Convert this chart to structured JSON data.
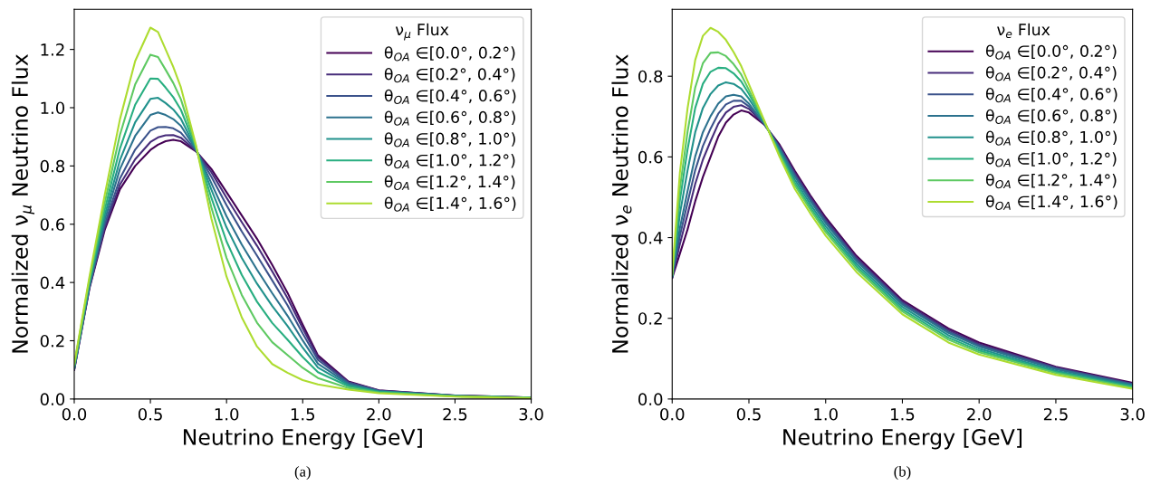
{
  "chart_data": [
    {
      "type": "line",
      "xlabel": "Neutrino Energy [GeV]",
      "ylabel": "Normalized ν$_{μ}$ Neutrino Flux",
      "legend_title": "ν$_{μ}$ Flux",
      "legend": "top right",
      "grid": false,
      "annotations": [
        "(a)"
      ],
      "x": [
        0,
        0.1,
        0.2,
        0.3,
        0.4,
        0.5,
        0.55,
        0.6,
        0.65,
        0.7,
        0.8,
        0.9,
        1.0,
        1.1,
        1.2,
        1.3,
        1.4,
        1.5,
        1.6,
        1.8,
        2.0,
        2.5,
        3.0
      ],
      "xlim": [
        0,
        3.0
      ],
      "ylim": [
        0,
        1.338
      ],
      "xticks": [
        {
          "value": 0,
          "label": "0.0"
        },
        {
          "value": 0.5,
          "label": "0.5"
        },
        {
          "value": 1,
          "label": "1.0"
        },
        {
          "value": 1.5,
          "label": "1.5"
        },
        {
          "value": 2,
          "label": "2.0"
        },
        {
          "value": 2.5,
          "label": "2.5"
        },
        {
          "value": 3,
          "label": "3.0"
        }
      ],
      "yticks": [
        {
          "value": 0,
          "label": "0.0"
        },
        {
          "value": 0.2,
          "label": "0.2"
        },
        {
          "value": 0.4,
          "label": "0.4"
        },
        {
          "value": 0.6,
          "label": "0.6"
        },
        {
          "value": 0.8,
          "label": "0.8"
        },
        {
          "value": 1,
          "label": "1.0"
        },
        {
          "value": 1.2,
          "label": "1.2"
        }
      ],
      "series": [
        {
          "name": "θ$_{OA}$ ∈[0.0°, 0.2°)",
          "color": "#440154",
          "values": [
            0.1,
            0.38,
            0.58,
            0.72,
            0.8,
            0.855,
            0.873,
            0.885,
            0.89,
            0.885,
            0.85,
            0.79,
            0.71,
            0.63,
            0.55,
            0.46,
            0.365,
            0.255,
            0.15,
            0.06,
            0.03,
            0.012,
            0.005
          ]
        },
        {
          "name": "θ$_{OA}$ ∈[0.2°, 0.4°)",
          "color": "#472c7a",
          "values": [
            0.101,
            0.383,
            0.588,
            0.736,
            0.823,
            0.882,
            0.898,
            0.905,
            0.906,
            0.897,
            0.851,
            0.779,
            0.691,
            0.607,
            0.526,
            0.438,
            0.347,
            0.243,
            0.143,
            0.058,
            0.029,
            0.012,
            0.005
          ]
        },
        {
          "name": "θ$_{OA}$ ∈[0.4°, 0.6°)",
          "color": "#3b528b",
          "values": [
            0.103,
            0.386,
            0.599,
            0.757,
            0.856,
            0.921,
            0.933,
            0.934,
            0.929,
            0.914,
            0.853,
            0.763,
            0.665,
            0.575,
            0.492,
            0.407,
            0.322,
            0.225,
            0.134,
            0.056,
            0.028,
            0.011,
            0.005
          ]
        },
        {
          "name": "θ$_{OA}$ ∈[0.6°, 0.8°)",
          "color": "#2c728e",
          "values": [
            0.106,
            0.391,
            0.614,
            0.789,
            0.903,
            0.975,
            0.984,
            0.975,
            0.961,
            0.938,
            0.856,
            0.741,
            0.627,
            0.53,
            0.444,
            0.363,
            0.286,
            0.201,
            0.121,
            0.052,
            0.027,
            0.011,
            0.004
          ]
        },
        {
          "name": "θ$_{OA}$ ∈[0.8°, 1.0°)",
          "color": "#21918c",
          "values": [
            0.108,
            0.397,
            0.63,
            0.82,
            0.95,
            1.03,
            1.034,
            1.016,
            0.994,
            0.962,
            0.858,
            0.719,
            0.589,
            0.484,
            0.396,
            0.319,
            0.251,
            0.176,
            0.108,
            0.048,
            0.026,
            0.01,
            0.004
          ]
        },
        {
          "name": "θ$_{OA}$ ∈[1.0°, 1.2°)",
          "color": "#28ae80",
          "values": [
            0.112,
            0.403,
            0.65,
            0.86,
            1.01,
            1.1,
            1.099,
            1.069,
            1.036,
            0.993,
            0.862,
            0.691,
            0.541,
            0.426,
            0.334,
            0.261,
            0.204,
            0.144,
            0.092,
            0.044,
            0.024,
            0.01,
            0.004
          ]
        },
        {
          "name": "θ$_{OA}$ ∈[1.2°, 1.4°)",
          "color": "#5ec962",
          "values": [
            0.116,
            0.411,
            0.673,
            0.907,
            1.08,
            1.182,
            1.174,
            1.13,
            1.085,
            1.029,
            0.866,
            0.658,
            0.484,
            0.357,
            0.262,
            0.195,
            0.151,
            0.107,
            0.072,
            0.038,
            0.022,
            0.009,
            0.004
          ]
        },
        {
          "name": "θ$_{OA}$ ∈[1.4°, 1.6°)",
          "color": "#addc30",
          "values": [
            0.12,
            0.42,
            0.7,
            0.96,
            1.16,
            1.275,
            1.26,
            1.2,
            1.14,
            1.07,
            0.87,
            0.62,
            0.42,
            0.28,
            0.18,
            0.12,
            0.09,
            0.065,
            0.05,
            0.032,
            0.02,
            0.008,
            0.003
          ]
        }
      ]
    },
    {
      "type": "line",
      "xlabel": "Neutrino Energy [GeV]",
      "ylabel": "Normalized ν$_{e}$ Neutrino Flux",
      "legend_title": "ν$_{e}$ Flux",
      "legend": "top right",
      "grid": false,
      "annotations": [
        "(b)"
      ],
      "x": [
        0,
        0.05,
        0.1,
        0.15,
        0.2,
        0.25,
        0.3,
        0.35,
        0.4,
        0.45,
        0.5,
        0.6,
        0.7,
        0.8,
        0.9,
        1.0,
        1.2,
        1.5,
        1.8,
        2.0,
        2.5,
        3.0
      ],
      "xlim": [
        0,
        3.0
      ],
      "ylim": [
        0,
        0.966
      ],
      "xticks": [
        {
          "value": 0,
          "label": "0.0"
        },
        {
          "value": 0.5,
          "label": "0.5"
        },
        {
          "value": 1,
          "label": "1.0"
        },
        {
          "value": 1.5,
          "label": "1.5"
        },
        {
          "value": 2,
          "label": "2.0"
        },
        {
          "value": 2.5,
          "label": "2.5"
        },
        {
          "value": 3,
          "label": "3.0"
        }
      ],
      "yticks": [
        {
          "value": 0,
          "label": "0.0"
        },
        {
          "value": 0.2,
          "label": "0.2"
        },
        {
          "value": 0.4,
          "label": "0.4"
        },
        {
          "value": 0.6,
          "label": "0.6"
        },
        {
          "value": 0.8,
          "label": "0.8"
        }
      ],
      "series": [
        {
          "name": "θ$_{OA}$ ∈[0.0°, 0.2°)",
          "color": "#440154",
          "values": [
            0.3,
            0.36,
            0.42,
            0.49,
            0.55,
            0.6,
            0.65,
            0.685,
            0.705,
            0.715,
            0.71,
            0.68,
            0.63,
            0.565,
            0.505,
            0.45,
            0.355,
            0.245,
            0.175,
            0.14,
            0.08,
            0.04
          ]
        },
        {
          "name": "θ$_{OA}$ ∈[0.2°, 0.4°)",
          "color": "#472c7a",
          "values": [
            0.301,
            0.384,
            0.457,
            0.533,
            0.593,
            0.639,
            0.682,
            0.71,
            0.724,
            0.728,
            0.719,
            0.681,
            0.626,
            0.56,
            0.5,
            0.445,
            0.35,
            0.241,
            0.171,
            0.136,
            0.078,
            0.038
          ]
        },
        {
          "name": "θ$_{OA}$ ∈[0.4°, 0.6°)",
          "color": "#3b528b",
          "values": [
            0.302,
            0.404,
            0.486,
            0.567,
            0.627,
            0.67,
            0.707,
            0.73,
            0.739,
            0.739,
            0.725,
            0.682,
            0.623,
            0.555,
            0.495,
            0.44,
            0.346,
            0.237,
            0.167,
            0.133,
            0.076,
            0.037
          ]
        },
        {
          "name": "θ$_{OA}$ ∈[0.6°, 0.8°)",
          "color": "#2c728e",
          "values": [
            0.303,
            0.423,
            0.515,
            0.601,
            0.661,
            0.701,
            0.732,
            0.75,
            0.754,
            0.75,
            0.732,
            0.683,
            0.62,
            0.551,
            0.491,
            0.436,
            0.342,
            0.234,
            0.164,
            0.13,
            0.074,
            0.035
          ]
        },
        {
          "name": "θ$_{OA}$ ∈[0.8°, 1.0°)",
          "color": "#21918c",
          "values": [
            0.305,
            0.458,
            0.566,
            0.661,
            0.721,
            0.756,
            0.777,
            0.785,
            0.781,
            0.769,
            0.744,
            0.685,
            0.615,
            0.543,
            0.483,
            0.428,
            0.335,
            0.228,
            0.158,
            0.125,
            0.07,
            0.033
          ]
        },
        {
          "name": "θ$_{OA}$ ∈[1.0°, 1.2°)",
          "color": "#28ae80",
          "values": [
            0.307,
            0.492,
            0.618,
            0.721,
            0.781,
            0.811,
            0.821,
            0.82,
            0.807,
            0.787,
            0.756,
            0.687,
            0.61,
            0.535,
            0.475,
            0.42,
            0.329,
            0.222,
            0.152,
            0.12,
            0.067,
            0.03
          ]
        },
        {
          "name": "θ$_{OA}$ ∈[1.2°, 1.4°)",
          "color": "#5ec962",
          "values": [
            0.308,
            0.521,
            0.662,
            0.772,
            0.832,
            0.858,
            0.859,
            0.85,
            0.83,
            0.804,
            0.766,
            0.688,
            0.606,
            0.529,
            0.469,
            0.414,
            0.323,
            0.217,
            0.147,
            0.116,
            0.064,
            0.028
          ]
        },
        {
          "name": "θ$_{OA}$ ∈[1.4°, 1.6°)",
          "color": "#addc30",
          "values": [
            0.31,
            0.56,
            0.72,
            0.84,
            0.9,
            0.92,
            0.91,
            0.89,
            0.86,
            0.825,
            0.78,
            0.69,
            0.6,
            0.52,
            0.46,
            0.405,
            0.315,
            0.21,
            0.14,
            0.11,
            0.06,
            0.025
          ]
        }
      ]
    }
  ]
}
